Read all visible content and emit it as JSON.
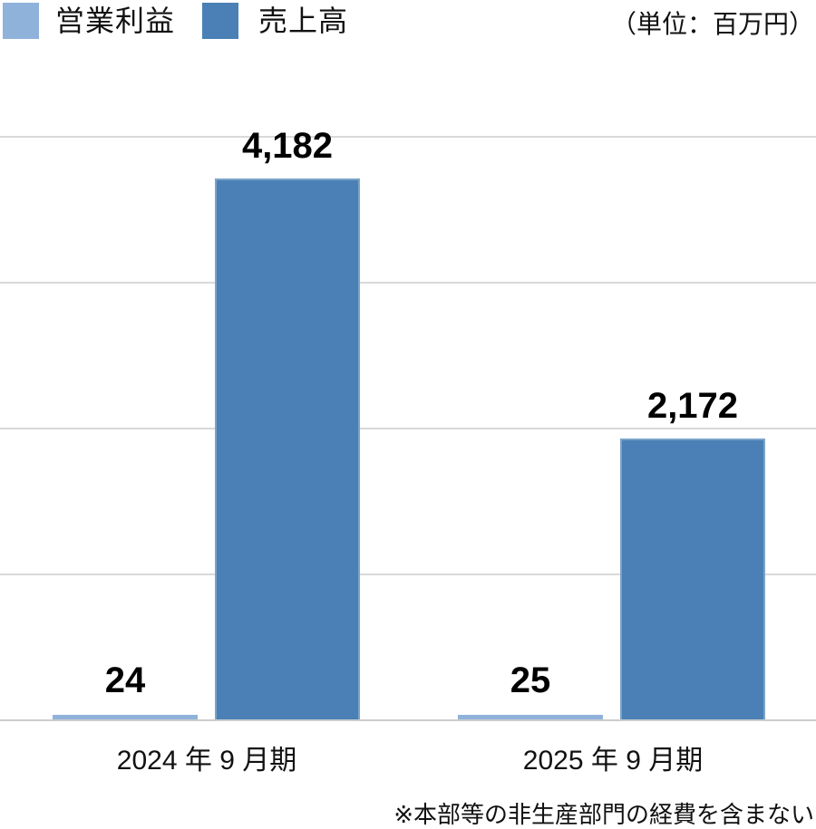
{
  "legend": {
    "items": [
      {
        "label": "営業利益",
        "color": "#8FB2DB"
      },
      {
        "label": "売上高",
        "color": "#4A80B5"
      }
    ]
  },
  "unit_note": "（単位：百万円）",
  "footnote": "※本部等の非生産部門の経費を含まない",
  "chart_data": {
    "type": "bar",
    "title": "",
    "xlabel": "",
    "ylabel": "",
    "categories": [
      "2024 年 9 月期",
      "2025 年 9 月期"
    ],
    "series": [
      {
        "name": "営業利益",
        "color": "#8FB2DB",
        "values": [
          24,
          25
        ],
        "value_labels": [
          "24",
          "25"
        ]
      },
      {
        "name": "売上高",
        "color": "#4A80B5",
        "values": [
          4182,
          2172
        ],
        "value_labels": [
          "4,182",
          "2,172"
        ]
      }
    ],
    "ylim": [
      0,
      4510
    ],
    "grid": true,
    "gridline_color": "#D9D9D9",
    "baseline_color": "#CCCCCC",
    "legend_position": "top-left",
    "unit": "百万円"
  }
}
